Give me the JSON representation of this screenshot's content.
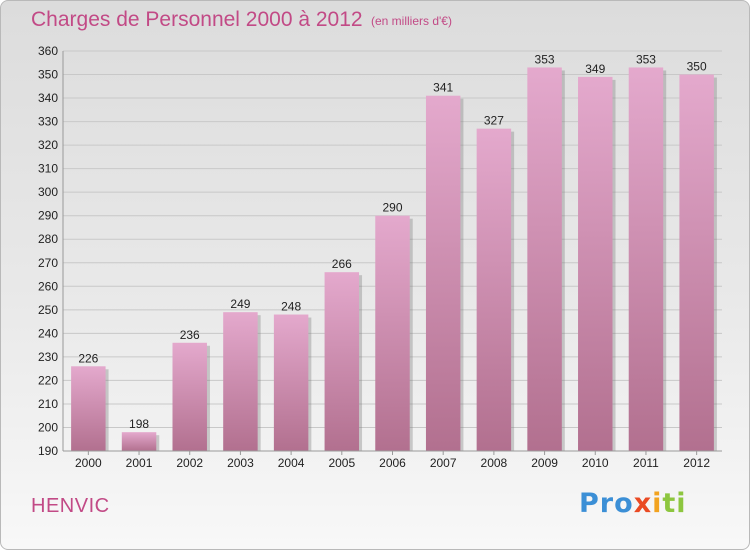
{
  "header": {
    "title": "Charges de Personnel 2000 à 2012",
    "subtitle": "(en milliers d'€)"
  },
  "footer": {
    "commune": "HENVIC",
    "brand_letters": [
      {
        "ch": "P",
        "color": "#3b8fd6"
      },
      {
        "ch": "r",
        "color": "#3b8fd6"
      },
      {
        "ch": "o",
        "color": "#3b8fd6"
      },
      {
        "ch": "x",
        "color": "#ea4a23"
      },
      {
        "ch": "i",
        "color": "#f2a320"
      },
      {
        "ch": "t",
        "color": "#8dc63f"
      },
      {
        "ch": "i",
        "color": "#8dc63f"
      }
    ]
  },
  "colors": {
    "accent": "#c24a86",
    "bar_top": "#e4a9cd",
    "bar_bottom": "#b2708f",
    "grid": "#c8c8c8",
    "axis_text": "#222222"
  },
  "chart_data": {
    "type": "bar",
    "title": "Charges de Personnel 2000 à 2012",
    "subtitle": "(en milliers d'€)",
    "categories": [
      "2000",
      "2001",
      "2002",
      "2003",
      "2004",
      "2005",
      "2006",
      "2007",
      "2008",
      "2009",
      "2010",
      "2011",
      "2012"
    ],
    "values": [
      226,
      198,
      236,
      249,
      248,
      266,
      290,
      341,
      327,
      353,
      349,
      353,
      350
    ],
    "xlabel": "",
    "ylabel": "",
    "ylim": [
      190,
      360
    ],
    "yticks": [
      190,
      200,
      210,
      220,
      230,
      240,
      250,
      260,
      270,
      280,
      290,
      300,
      310,
      320,
      330,
      340,
      350,
      360
    ],
    "grid": true,
    "data_labels": true
  }
}
